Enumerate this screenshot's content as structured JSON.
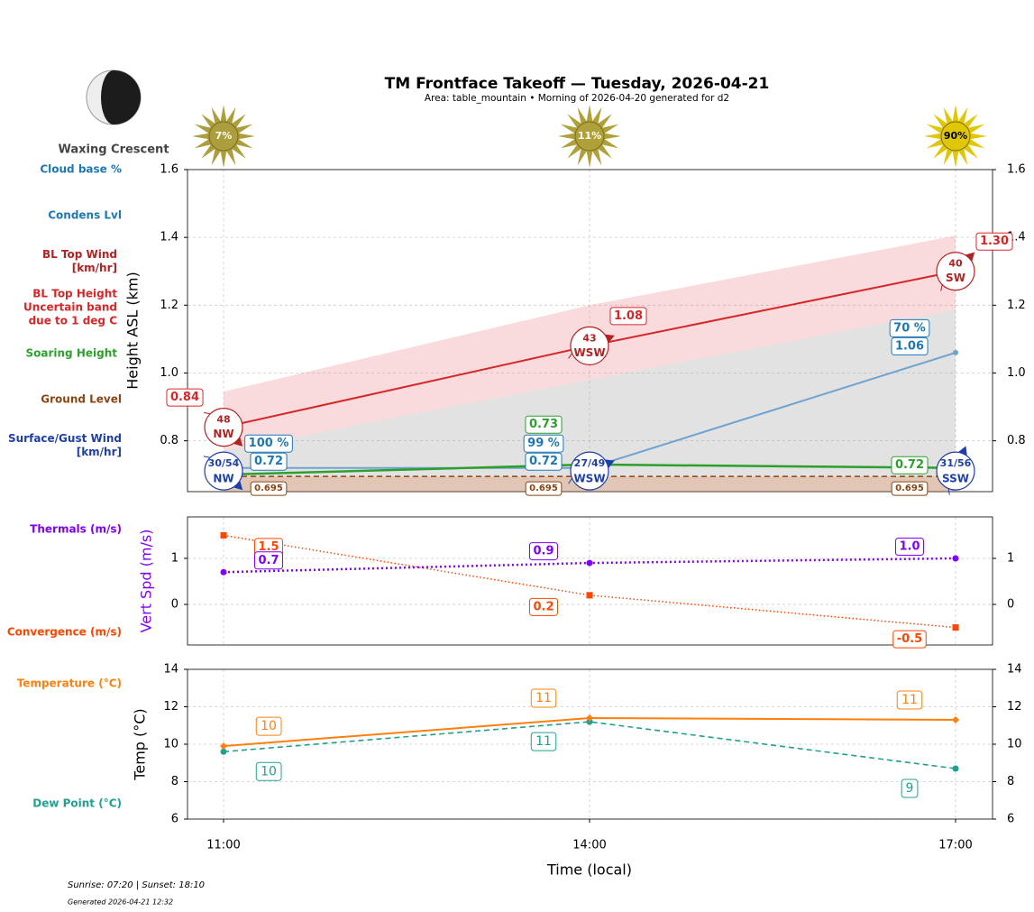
{
  "title": "TM Frontface Takeoff — Tuesday, 2026-04-21",
  "subtitle": "Area: table_mountain • Morning of 2026-04-20 generated for d2",
  "moon_phase": "Waxing Crescent",
  "sunshine": {
    "values": [
      7,
      11,
      90
    ],
    "value_labels": [
      "7%",
      "11%",
      "90%"
    ]
  },
  "footer": {
    "sun_times": "Sunrise: 07:20 | Sunset: 18:10",
    "generated": "Generated 2026-04-21 12:32"
  },
  "chart_data": [
    {
      "type": "line",
      "ylabel": "Height ASL (km)",
      "ylim": [
        0.65,
        1.6
      ],
      "yticks": [
        0.8,
        {
          "value": 1,
          "label": "1.0"
        },
        1.2,
        1.4,
        1.6
      ],
      "grid": true,
      "cloud_base": {
        "name": "Cloud base %",
        "color": "#1f77b4",
        "values": [
          100,
          99,
          70
        ],
        "value_labels": [
          "100 %",
          "99 %",
          "70 %"
        ]
      },
      "condensation": {
        "name": "Condens Lvl",
        "color": "#1f77b4",
        "values": [
          0.72,
          0.72,
          1.06
        ]
      },
      "bl_top_wind": {
        "name": "BL Top Wind\n[km/hr]",
        "color": "#b22222",
        "speed": [
          48,
          43,
          40
        ],
        "directions": [
          "NW",
          "WSW",
          "SW"
        ]
      },
      "bl_top": {
        "name": "BL Top Height\nUncertain band\ndue to 1 deg C",
        "color": "#d62728",
        "values": [
          0.84,
          1.08,
          1.3
        ],
        "value_labels": [
          "0.84",
          "1.08",
          "1.30"
        ],
        "band_low": [
          0.77,
          0.98,
          1.187
        ],
        "band_high": [
          0.945,
          1.2,
          1.405
        ]
      },
      "soaring": {
        "name": "Soaring Height",
        "color": "#2ca02c",
        "values": [
          0.7,
          0.73,
          0.72
        ]
      },
      "ground": {
        "name": "Ground Level",
        "color": "#8b4513",
        "values": [
          0.695,
          0.695,
          0.695
        ]
      },
      "surface_wind": {
        "name": "Surface/Gust Wind\n[km/hr]",
        "color": "#1f3fa8",
        "speed": [
          30,
          27,
          31
        ],
        "gust": [
          54,
          49,
          56
        ],
        "labels": [
          "30/54",
          "27/49",
          "31/56"
        ],
        "directions": [
          "NW",
          "WSW",
          "SSW"
        ]
      }
    },
    {
      "type": "line",
      "ylabel": "Vert Spd (m/s)",
      "ylabel_color": "#7f00ff",
      "ylim": [
        -0.88,
        1.9
      ],
      "yticks": [
        0,
        1
      ],
      "grid": true,
      "thermals": {
        "name": "Thermals (m/s)",
        "color": "#7f00ff",
        "values": [
          0.7,
          0.9,
          1
        ],
        "value_labels": [
          "0.7",
          "0.9",
          "1.0"
        ]
      },
      "convergence": {
        "name": "Convergence (m/s)",
        "color": "#ff4500",
        "values": [
          1.5,
          0.2,
          -0.5
        ]
      }
    },
    {
      "type": "line",
      "ylabel": "Temp (°C)",
      "xlabel": "Time (local)",
      "categories": [
        "11:00",
        "14:00",
        "17:00"
      ],
      "ylim": [
        6,
        14
      ],
      "yticks": [
        6,
        8,
        10,
        12,
        14
      ],
      "grid": true,
      "temperature": {
        "name": "Temperature (°C)",
        "color": "#ff7f0e",
        "values": [
          9.9,
          11.4,
          11.3
        ],
        "value_labels": [
          "10",
          "11",
          "11"
        ]
      },
      "dew_point": {
        "name": "Dew Point (°C)",
        "color": "#20a090",
        "values": [
          9.6,
          11.2,
          8.7
        ],
        "value_labels": [
          "10",
          "11",
          "9"
        ]
      }
    }
  ]
}
